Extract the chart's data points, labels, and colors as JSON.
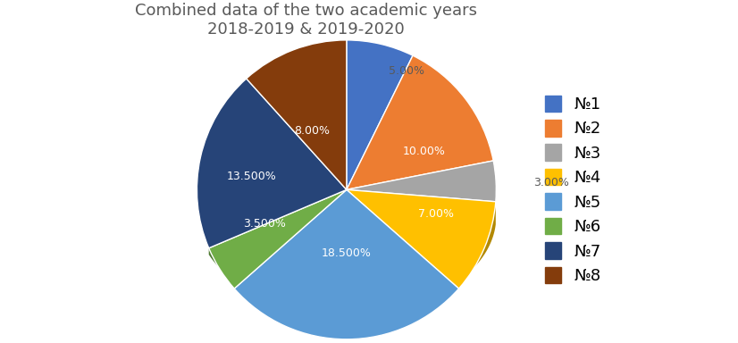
{
  "title": "Combined data of the two academic years\n2018-2019 & 2019-2020",
  "labels": [
    "№1",
    "№2",
    "№3",
    "№4",
    "№5",
    "№6",
    "№7",
    "№8"
  ],
  "values": [
    5.0,
    10.0,
    3.0,
    7.0,
    18.5,
    3.5,
    13.5,
    8.0
  ],
  "colors": [
    "#4472C4",
    "#ED7D31",
    "#A5A5A5",
    "#FFC000",
    "#5B9BD5",
    "#70AD47",
    "#264478",
    "#843C0C"
  ],
  "dark_colors": [
    "#2E508E",
    "#B05A1F",
    "#737373",
    "#B38900",
    "#2E75B6",
    "#4E7A30",
    "#1A2F54",
    "#5C2A07"
  ],
  "autopct_labels": [
    "5.00%",
    "10.00%",
    "3.00%",
    "7.00%",
    "18.500%",
    "3.500%",
    "13.500%",
    "8.00%"
  ],
  "outside_label": [
    true,
    false,
    true,
    false,
    false,
    false,
    false,
    false
  ],
  "background_color": "#FFFFFF",
  "title_fontsize": 13,
  "legend_fontsize": 13,
  "label_color": [
    "#595959",
    "#FFFFFF",
    "#595959",
    "#FFFFFF",
    "#FFFFFF",
    "#FFFFFF",
    "#FFFFFF",
    "#FFFFFF"
  ]
}
